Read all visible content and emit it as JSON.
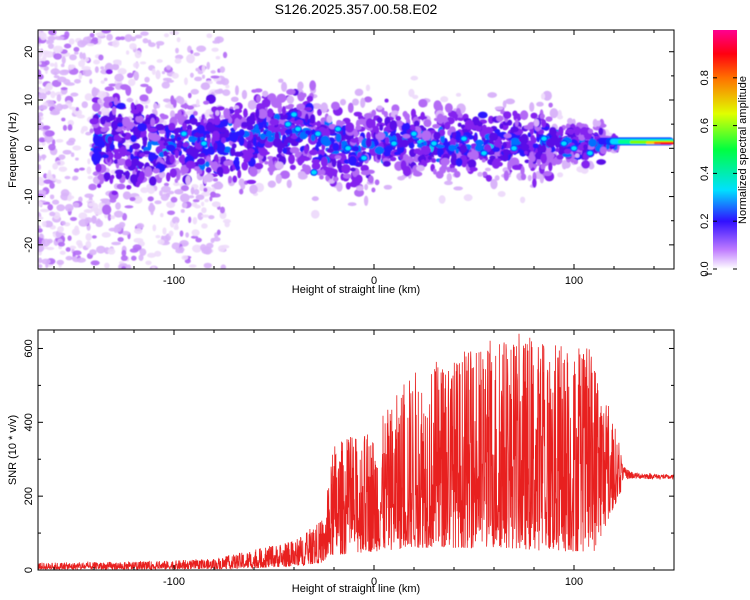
{
  "figure_title": "S126.2025.357.00.58.E02",
  "chart_data": [
    {
      "type": "heatmap",
      "title": "",
      "xlabel": "Height of straight line (km)",
      "ylabel": "Frequency (Hz)",
      "xlim": [
        -168,
        150
      ],
      "ylim": [
        -25,
        24.5
      ],
      "x_ticks": [
        -100,
        0,
        100
      ],
      "y_ticks": [
        -20,
        -10,
        0,
        10,
        20
      ],
      "colorbar": {
        "label": "Normalized spectral amplitude",
        "range": [
          0,
          1
        ],
        "ticks": [
          0.0,
          0.2,
          0.4,
          0.6,
          0.8
        ],
        "colormap": [
          "#ffffff",
          "#8a2be2",
          "#0000ff",
          "#00ffff",
          "#00ff00",
          "#ffff00",
          "#ff8000",
          "#ff0000",
          "#ff007f"
        ]
      },
      "description_points": [
        {
          "height_km": -40,
          "freq_hz": 5,
          "amplitude": 0.25
        },
        {
          "height_km": -20,
          "freq_hz": 3,
          "amplitude": 0.22
        },
        {
          "height_km": 50,
          "freq_hz": 2,
          "amplitude": 0.22
        },
        {
          "height_km": 100,
          "freq_hz": 0.5,
          "amplitude": 0.3
        },
        {
          "height_km": 120,
          "freq_hz": 1.5,
          "amplitude": 0.4
        },
        {
          "height_km": 135,
          "freq_hz": 1,
          "amplitude": 0.6
        },
        {
          "height_km": 146,
          "freq_hz": 1,
          "amplitude": 0.85
        }
      ]
    },
    {
      "type": "line",
      "title": "",
      "xlabel": "Height of straight line (km)",
      "ylabel": "SNR (10 * v/v)",
      "xlim": [
        -168,
        150
      ],
      "ylim": [
        0,
        650
      ],
      "x_ticks": [
        -100,
        0,
        100
      ],
      "y_ticks": [
        0,
        200,
        400,
        600
      ],
      "series": [
        {
          "name": "SNR",
          "color": "#e8201f",
          "envelope": [
            {
              "x": -168,
              "low": 2,
              "high": 20
            },
            {
              "x": -120,
              "low": 2,
              "high": 22
            },
            {
              "x": -80,
              "low": 3,
              "high": 30
            },
            {
              "x": -60,
              "low": 5,
              "high": 55
            },
            {
              "x": -40,
              "low": 10,
              "high": 80
            },
            {
              "x": -25,
              "low": 20,
              "high": 140
            },
            {
              "x": -20,
              "low": 40,
              "high": 350
            },
            {
              "x": 0,
              "low": 50,
              "high": 380
            },
            {
              "x": 20,
              "low": 60,
              "high": 550
            },
            {
              "x": 50,
              "low": 60,
              "high": 600
            },
            {
              "x": 65,
              "low": 60,
              "high": 650
            },
            {
              "x": 90,
              "low": 50,
              "high": 620
            },
            {
              "x": 110,
              "low": 50,
              "high": 600
            },
            {
              "x": 125,
              "low": 230,
              "high": 300
            },
            {
              "x": 130,
              "low": 240,
              "high": 275
            },
            {
              "x": 150,
              "low": 240,
              "high": 265
            }
          ]
        }
      ]
    }
  ]
}
